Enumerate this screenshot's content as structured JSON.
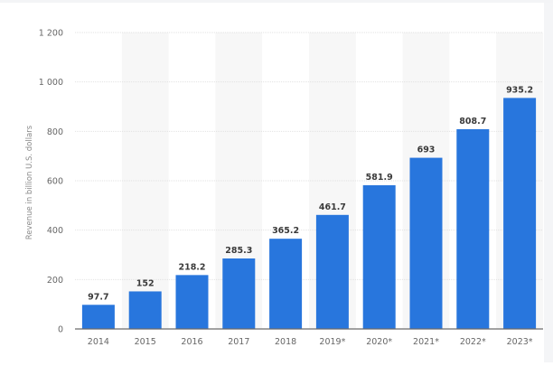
{
  "chart_data": {
    "type": "bar",
    "title": "",
    "xlabel": "",
    "ylabel": "Revenue in billion U.S. dollars",
    "categories": [
      "2014",
      "2015",
      "2016",
      "2017",
      "2018",
      "2019*",
      "2020*",
      "2021*",
      "2022*",
      "2023*"
    ],
    "values": [
      97.7,
      152,
      218.2,
      285.3,
      365.2,
      461.7,
      581.9,
      693,
      808.7,
      935.2
    ],
    "value_labels": [
      "97.7",
      "152",
      "218.2",
      "285.3",
      "365.2",
      "461.7",
      "581.9",
      "693",
      "808.7",
      "935.2"
    ],
    "ylim": [
      0,
      1200
    ],
    "yticks": [
      0,
      200,
      400,
      600,
      800,
      1000,
      1200
    ],
    "ytick_labels": [
      "0",
      "200",
      "400",
      "600",
      "800",
      "1 000",
      "1 200"
    ],
    "grid": true,
    "legend": null,
    "bar_color": "#2876dd"
  }
}
